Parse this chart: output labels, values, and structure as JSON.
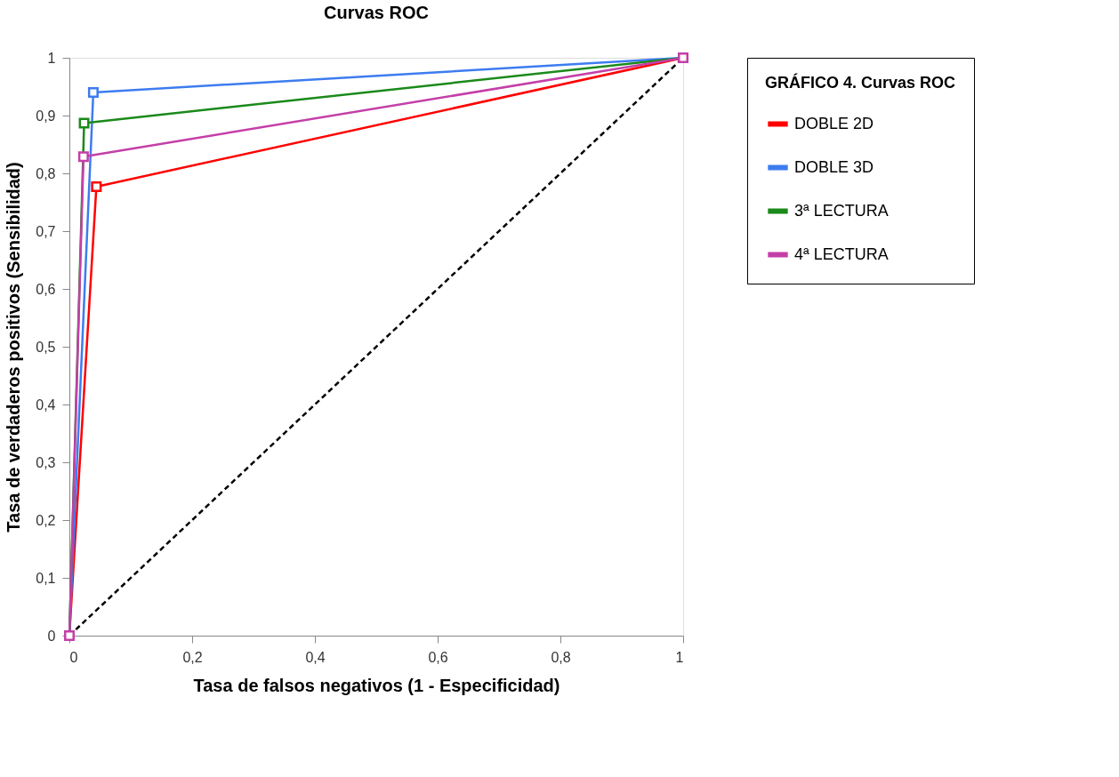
{
  "chart_data": {
    "type": "line",
    "title": "Curvas ROC",
    "xlabel": "Tasa de falsos  negativos (1 - Especificidad)",
    "ylabel": "Tasa de verdaderos positivos  (Sensibilidad)",
    "legend_title": "GRÁFICO 4. Curvas ROC",
    "legend": "right",
    "xlim": [
      0,
      1
    ],
    "ylim": [
      0,
      1
    ],
    "xticks": [
      0,
      {
        "value": 0.2,
        "label": "0,2"
      },
      {
        "value": 0.4,
        "label": "0,4"
      },
      {
        "value": 0.6,
        "label": "0,6"
      },
      {
        "value": 0.8,
        "label": "0,8"
      },
      1
    ],
    "yticks": [
      0,
      {
        "value": 0.1,
        "label": "0,1"
      },
      {
        "value": 0.2,
        "label": "0,2"
      },
      {
        "value": 0.3,
        "label": "0,3"
      },
      {
        "value": 0.4,
        "label": "0,4"
      },
      {
        "value": 0.5,
        "label": "0,5"
      },
      {
        "value": 0.6,
        "label": "0,6"
      },
      {
        "value": 0.7,
        "label": "0,7"
      },
      {
        "value": 0.8,
        "label": "0,8"
      },
      {
        "value": 0.9,
        "label": "0,9"
      },
      1
    ],
    "series": [
      {
        "type": "line",
        "line_style": "dashed",
        "color": "#000000",
        "x": [
          0,
          1
        ],
        "values": [
          0,
          1
        ]
      },
      {
        "name": "DOBLE 2D",
        "marker": "square",
        "color": "#ff0000",
        "x": [
          0,
          0.044,
          1
        ],
        "values": [
          0,
          0.777,
          1
        ]
      },
      {
        "name": "DOBLE 3D",
        "marker": "square",
        "color": "#3d7cf0",
        "x": [
          0,
          0.039,
          1
        ],
        "values": [
          0,
          0.94,
          1
        ]
      },
      {
        "name": "3ª LECTURA",
        "marker": "square",
        "color": "#1a8a1a",
        "x": [
          0,
          0.024,
          1
        ],
        "values": [
          0,
          0.887,
          1
        ]
      },
      {
        "name": "4ª LECTURA",
        "marker": "square",
        "color": "#c43fa8",
        "x": [
          0,
          0.023,
          1
        ],
        "values": [
          0,
          0.829,
          1
        ]
      }
    ]
  }
}
